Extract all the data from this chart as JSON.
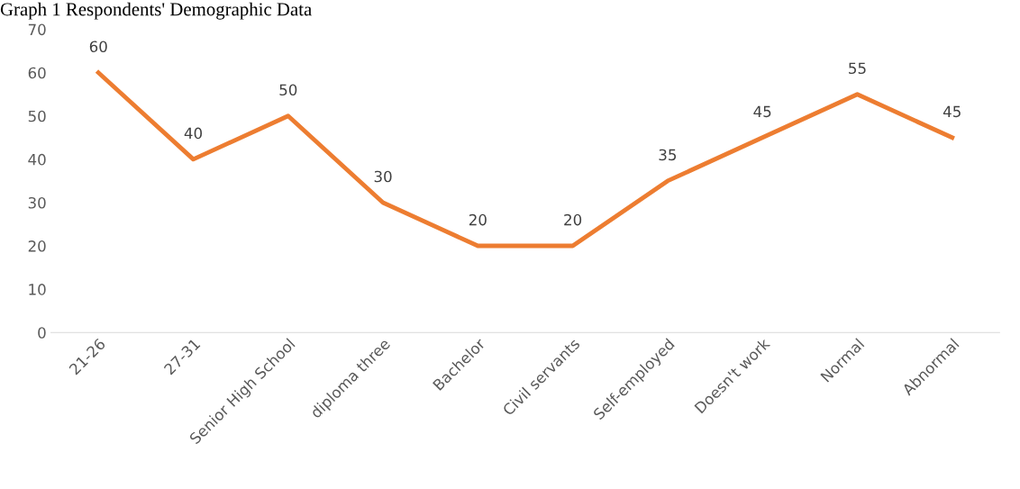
{
  "chart_data": {
    "type": "line",
    "title": "Graph 1 Respondents' Demographic Data",
    "categories": [
      "21-26",
      "27-31",
      "Senior High School",
      "diploma three",
      "Bachelor",
      "Civil servants",
      "Self-employed",
      "Doesn't work",
      "Normal",
      "Abnormal"
    ],
    "series": [
      {
        "color": "#ed7d31",
        "values": [
          60,
          40,
          50,
          30,
          20,
          20,
          35,
          45,
          55,
          45
        ]
      }
    ],
    "ylim": [
      0,
      70
    ],
    "yticks": [
      0,
      10,
      20,
      30,
      40,
      50,
      60,
      70
    ],
    "grid": false,
    "legend": false,
    "marker": "none",
    "line_style": "solid",
    "data_labels": true
  }
}
